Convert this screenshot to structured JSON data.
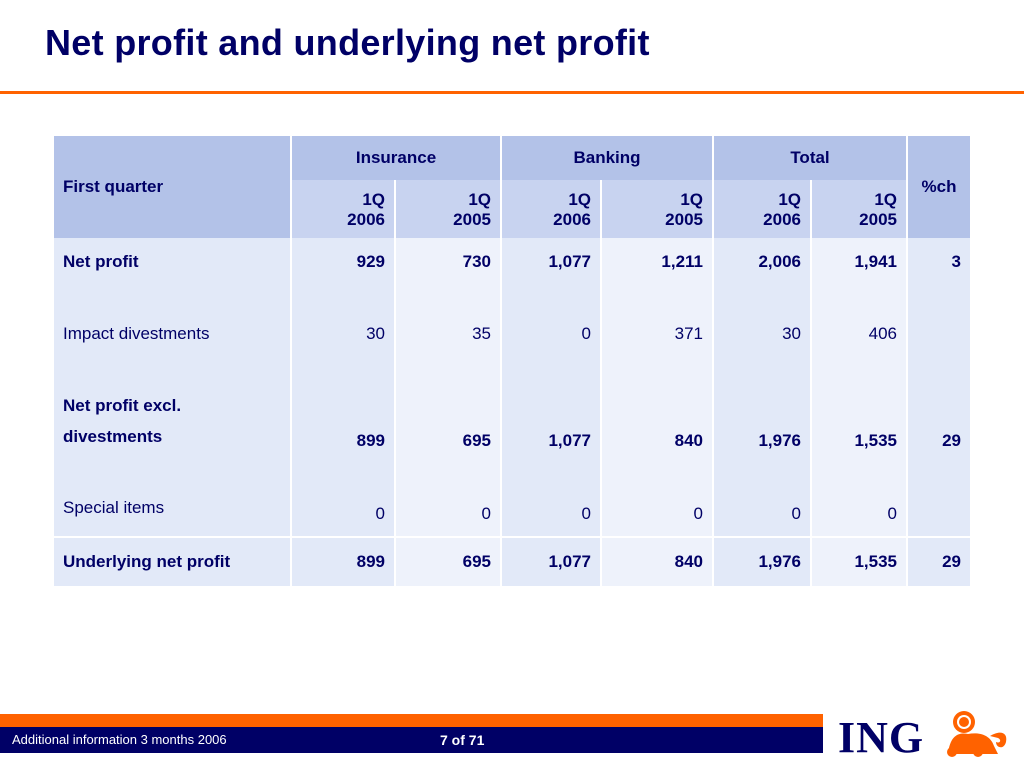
{
  "title": "Net profit and underlying net profit",
  "table": {
    "corner_label": "First quarter",
    "groups": [
      "Insurance",
      "Banking",
      "Total"
    ],
    "pct_header": "%ch",
    "subheaders": [
      {
        "q": "1Q",
        "year": "2006"
      },
      {
        "q": "1Q",
        "year": "2005"
      },
      {
        "q": "1Q",
        "year": "2006"
      },
      {
        "q": "1Q",
        "year": "2005"
      },
      {
        "q": "1Q",
        "year": "2006"
      },
      {
        "q": "1Q",
        "year": "2005"
      }
    ],
    "rows": [
      {
        "label": "Net profit",
        "bold": true,
        "values": [
          "929",
          "730",
          "1,077",
          "1,211",
          "2,006",
          "1,941"
        ],
        "pct": "3"
      },
      {
        "label": "Impact divestments",
        "bold": false,
        "values": [
          "30",
          "35",
          "0",
          "371",
          "30",
          "406"
        ],
        "pct": ""
      },
      {
        "label_line1": "Net profit excl.",
        "label_line2": "divestments",
        "bold": true,
        "values": [
          "899",
          "695",
          "1,077",
          "840",
          "1,976",
          "1,535"
        ],
        "pct": "29"
      },
      {
        "label": "Special items",
        "bold": false,
        "values": [
          "0",
          "0",
          "0",
          "0",
          "0",
          "0"
        ],
        "pct": ""
      }
    ],
    "total_row": {
      "label": "Underlying net profit",
      "values": [
        "899",
        "695",
        "1,077",
        "840",
        "1,976",
        "1,535"
      ],
      "pct": "29"
    }
  },
  "footer": {
    "left_text": "Additional information 3 months 2006",
    "page": "7 of 71",
    "logo": "ING"
  },
  "colors": {
    "brand_blue": "#000066",
    "brand_orange": "#ff6200",
    "header_fill": "#b3c2e8"
  }
}
